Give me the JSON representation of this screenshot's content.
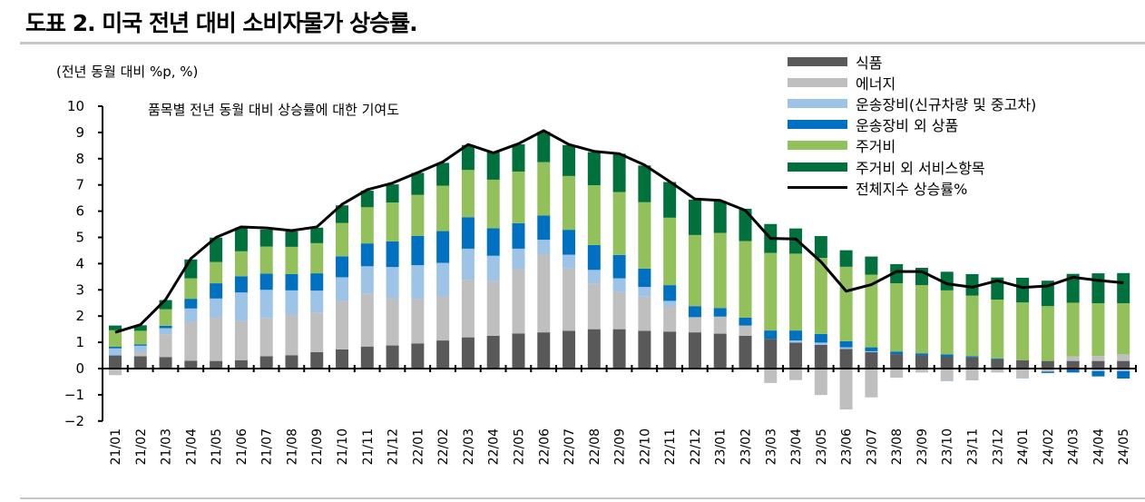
{
  "title": "도표 2. 미국 전년 대비 소비자물가 상승률.",
  "chart_data": {
    "type": "bar",
    "stacked": true,
    "title": "",
    "unit_label": "(전년 동월 대비 %p, %)",
    "annotation": "품목별 전년 동월 대비 상승률에 대한 기여도",
    "ylim": [
      -2,
      10
    ],
    "yticks": [
      -2,
      -1,
      0,
      1,
      2,
      3,
      4,
      5,
      6,
      7,
      8,
      9,
      10
    ],
    "grid": false,
    "legend_position": "top-right",
    "categories": [
      "21/01",
      "21/02",
      "21/03",
      "21/04",
      "21/05",
      "21/06",
      "21/07",
      "21/08",
      "21/09",
      "21/10",
      "21/11",
      "21/12",
      "22/01",
      "22/02",
      "22/03",
      "22/04",
      "22/05",
      "22/06",
      "22/07",
      "22/08",
      "22/09",
      "22/10",
      "22/11",
      "22/12",
      "23/01",
      "23/02",
      "23/03",
      "23/04",
      "23/05",
      "23/06",
      "23/07",
      "23/08",
      "23/09",
      "23/10",
      "23/11",
      "23/12",
      "24/01",
      "24/02",
      "24/03",
      "24/04",
      "24/05"
    ],
    "series": [
      {
        "name": "식품",
        "type": "bar",
        "color": "#595959",
        "values": [
          0.5,
          0.47,
          0.44,
          0.3,
          0.29,
          0.32,
          0.47,
          0.51,
          0.63,
          0.73,
          0.84,
          0.88,
          0.96,
          1.07,
          1.19,
          1.25,
          1.34,
          1.38,
          1.44,
          1.5,
          1.5,
          1.44,
          1.41,
          1.38,
          1.33,
          1.25,
          1.13,
          0.99,
          0.9,
          0.75,
          0.63,
          0.55,
          0.5,
          0.45,
          0.42,
          0.35,
          0.32,
          0.29,
          0.29,
          0.29,
          0.29
        ]
      },
      {
        "name": "에너지",
        "type": "bar",
        "color": "#bfbfbf",
        "values": [
          -0.25,
          0.17,
          0.87,
          1.48,
          1.65,
          1.5,
          1.46,
          1.55,
          1.51,
          1.85,
          2.02,
          1.8,
          1.7,
          1.68,
          2.19,
          2.1,
          2.45,
          2.98,
          2.38,
          1.74,
          1.42,
          1.3,
          0.96,
          0.58,
          0.65,
          0.39,
          -0.55,
          -0.44,
          -1.01,
          -1.56,
          -1.1,
          -0.35,
          -0.15,
          -0.45,
          -0.45,
          -0.15,
          -0.35,
          -0.12,
          0.17,
          0.19,
          0.25
        ]
      },
      {
        "name": "운송장비(신규차량 및 중고차)",
        "type": "bar",
        "color": "#9dc3e6",
        "values": [
          0.27,
          0.23,
          0.23,
          0.51,
          0.73,
          1.08,
          1.07,
          0.92,
          0.83,
          0.9,
          1.04,
          1.19,
          1.28,
          1.28,
          1.19,
          0.95,
          0.78,
          0.55,
          0.52,
          0.52,
          0.52,
          0.37,
          0.21,
          0.0,
          0.0,
          0.0,
          0.0,
          0.08,
          0.09,
          0.06,
          0.03,
          0.0,
          0.0,
          -0.03,
          0.0,
          0.0,
          -0.03,
          0.0,
          0.0,
          -0.1,
          -0.1
        ]
      },
      {
        "name": "운송장비 외 상품",
        "type": "bar",
        "color": "#0070c0",
        "values": [
          0.06,
          0.05,
          0.09,
          0.37,
          0.58,
          0.62,
          0.62,
          0.62,
          0.66,
          0.8,
          0.87,
          0.98,
          1.12,
          1.21,
          1.2,
          1.05,
          0.97,
          0.92,
          0.95,
          0.95,
          0.89,
          0.7,
          0.6,
          0.42,
          0.33,
          0.3,
          0.32,
          0.38,
          0.33,
          0.23,
          0.15,
          0.1,
          0.08,
          0.09,
          0.05,
          0.03,
          0.0,
          -0.05,
          -0.15,
          -0.2,
          -0.28
        ]
      },
      {
        "name": "주거비",
        "type": "bar",
        "color": "#92c05a",
        "values": [
          0.63,
          0.52,
          0.63,
          0.78,
          0.81,
          0.95,
          1.03,
          1.04,
          1.15,
          1.27,
          1.38,
          1.48,
          1.56,
          1.73,
          1.8,
          1.85,
          1.97,
          2.04,
          2.05,
          2.28,
          2.4,
          2.53,
          2.57,
          2.71,
          2.86,
          2.92,
          2.96,
          2.93,
          2.9,
          2.84,
          2.77,
          2.6,
          2.6,
          2.44,
          2.31,
          2.25,
          2.2,
          2.09,
          2.05,
          2.01,
          1.95
        ]
      },
      {
        "name": "주거비 외 서비스항목",
        "type": "bar",
        "color": "#00703c",
        "values": [
          0.18,
          0.21,
          0.35,
          0.72,
          0.93,
          0.9,
          0.65,
          0.59,
          0.59,
          0.67,
          0.63,
          0.69,
          0.84,
          0.87,
          0.95,
          1.06,
          1.04,
          1.15,
          1.18,
          1.26,
          1.46,
          1.4,
          1.36,
          1.35,
          1.21,
          1.23,
          1.1,
          0.96,
          0.83,
          0.63,
          0.69,
          0.73,
          0.66,
          0.71,
          0.82,
          0.84,
          0.94,
          0.97,
          1.1,
          1.14,
          1.15
        ]
      },
      {
        "name": "전체지수 상승률%",
        "type": "line",
        "color": "#000000",
        "values": [
          1.38,
          1.67,
          2.63,
          4.19,
          5.0,
          5.4,
          5.36,
          5.26,
          5.4,
          6.26,
          6.82,
          7.07,
          7.47,
          7.88,
          8.54,
          8.22,
          8.57,
          9.07,
          8.54,
          8.28,
          8.19,
          7.76,
          7.13,
          6.46,
          6.41,
          6.03,
          4.96,
          4.94,
          4.07,
          2.95,
          3.2,
          3.7,
          3.7,
          3.23,
          3.1,
          3.35,
          3.09,
          3.15,
          3.48,
          3.36,
          3.27
        ]
      }
    ]
  }
}
